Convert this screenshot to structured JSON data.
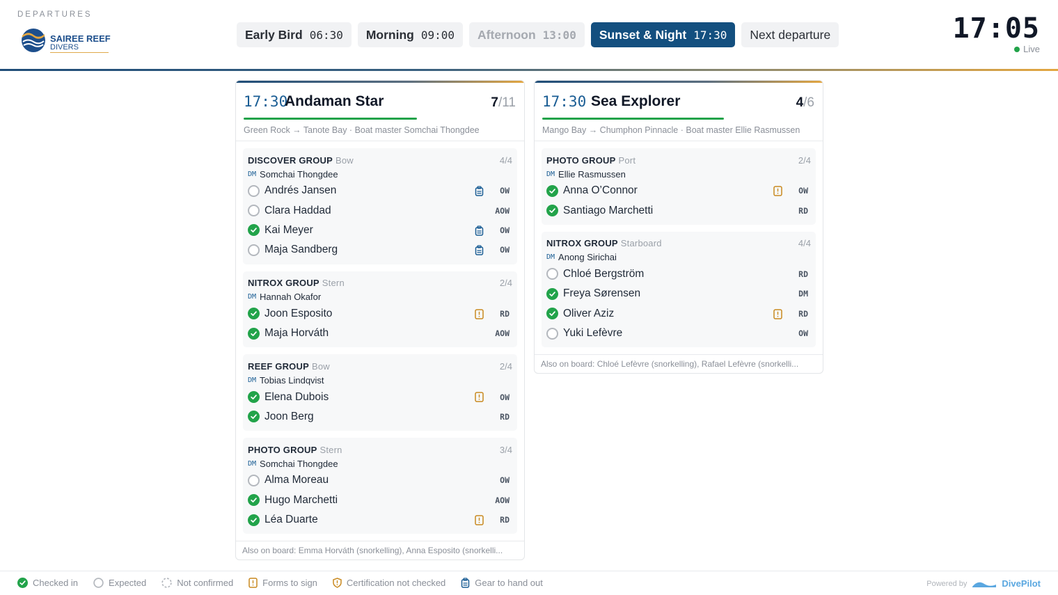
{
  "header": {
    "section_label": "DEPARTURES",
    "logo": {
      "line1": "SAIREE REEF",
      "line2": "DIVERS"
    },
    "clock": "17:05",
    "live_label": "Live"
  },
  "tabs": [
    {
      "name": "Early Bird",
      "time": "06:30",
      "state": "normal"
    },
    {
      "name": "Morning",
      "time": "09:00",
      "state": "normal"
    },
    {
      "name": "Afternoon",
      "time": "13:00",
      "state": "past"
    },
    {
      "name": "Sunset & Night",
      "time": "17:30",
      "state": "active"
    },
    {
      "name": "Next departure",
      "time": "",
      "state": "plain"
    }
  ],
  "boats": [
    {
      "time": "17:30",
      "name": "Andaman Star",
      "checked_in": "7",
      "capacity_sep": "/11",
      "progress": 0.636,
      "route": "Green Rock → Tanote Bay · Boat master Somchai Thongdee",
      "also_on_board": "Also on board: Emma Horváth (snorkelling), Anna Esposito (snorkelli...",
      "groups": [
        {
          "title": "DISCOVER GROUP",
          "position": "Bow",
          "count": "4/4",
          "dm_tag": "DM",
          "dm": "Somchai Thongdee",
          "divers": [
            {
              "name": "Andrés Jansen",
              "status": "expected",
              "flag": "gear",
              "cert": "OW"
            },
            {
              "name": "Clara Haddad",
              "status": "expected",
              "flag": "",
              "cert": "AOW"
            },
            {
              "name": "Kai Meyer",
              "status": "checked",
              "flag": "gear",
              "cert": "OW"
            },
            {
              "name": "Maja Sandberg",
              "status": "expected",
              "flag": "gear",
              "cert": "OW"
            }
          ]
        },
        {
          "title": "NITROX GROUP",
          "position": "Stern",
          "count": "2/4",
          "dm_tag": "DM",
          "dm": "Hannah Okafor",
          "divers": [
            {
              "name": "Joon Esposito",
              "status": "checked",
              "flag": "forms",
              "cert": "RD"
            },
            {
              "name": "Maja Horváth",
              "status": "checked",
              "flag": "",
              "cert": "AOW"
            }
          ]
        },
        {
          "title": "REEF GROUP",
          "position": "Bow",
          "count": "2/4",
          "dm_tag": "DM",
          "dm": "Tobias Lindqvist",
          "divers": [
            {
              "name": "Elena Dubois",
              "status": "checked",
              "flag": "forms",
              "cert": "OW"
            },
            {
              "name": "Joon Berg",
              "status": "checked",
              "flag": "",
              "cert": "RD"
            }
          ]
        },
        {
          "title": "PHOTO GROUP",
          "position": "Stern",
          "count": "3/4",
          "dm_tag": "DM",
          "dm": "Somchai Thongdee",
          "divers": [
            {
              "name": "Alma Moreau",
              "status": "expected",
              "flag": "",
              "cert": "OW"
            },
            {
              "name": "Hugo Marchetti",
              "status": "checked",
              "flag": "",
              "cert": "AOW"
            },
            {
              "name": "Léa Duarte",
              "status": "checked",
              "flag": "forms",
              "cert": "RD"
            }
          ]
        }
      ]
    },
    {
      "time": "17:30",
      "name": "Sea Explorer",
      "checked_in": "4",
      "capacity_sep": "/6",
      "progress": 0.667,
      "route": "Mango Bay → Chumphon Pinnacle · Boat master Ellie Rasmussen",
      "also_on_board": "Also on board: Chloé Lefèvre (snorkelling), Rafael Lefèvre (snorkelli...",
      "groups": [
        {
          "title": "PHOTO GROUP",
          "position": "Port",
          "count": "2/4",
          "dm_tag": "DM",
          "dm": "Ellie Rasmussen",
          "divers": [
            {
              "name": "Anna O’Connor",
              "status": "checked",
              "flag": "forms",
              "cert": "OW"
            },
            {
              "name": "Santiago Marchetti",
              "status": "checked",
              "flag": "",
              "cert": "RD"
            }
          ]
        },
        {
          "title": "NITROX GROUP",
          "position": "Starboard",
          "count": "4/4",
          "dm_tag": "DM",
          "dm": "Anong Sirichai",
          "divers": [
            {
              "name": "Chloé Bergström",
              "status": "expected",
              "flag": "",
              "cert": "RD"
            },
            {
              "name": "Freya Sørensen",
              "status": "checked",
              "flag": "",
              "cert": "DM"
            },
            {
              "name": "Oliver Aziz",
              "status": "checked",
              "flag": "forms",
              "cert": "RD"
            },
            {
              "name": "Yuki Lefèvre",
              "status": "expected",
              "flag": "",
              "cert": "OW"
            }
          ]
        }
      ]
    }
  ],
  "legend": [
    {
      "icon": "checked-icon",
      "label": "Checked in"
    },
    {
      "icon": "expected-icon",
      "label": "Expected"
    },
    {
      "icon": "not-confirmed-icon",
      "label": "Not confirmed"
    },
    {
      "icon": "forms-icon",
      "label": "Forms to sign"
    },
    {
      "icon": "certification-icon",
      "label": "Certification not checked"
    },
    {
      "icon": "gear-icon",
      "label": "Gear to hand out"
    }
  ],
  "footer": {
    "powered_by": "Powered by",
    "brand": "DivePilot"
  },
  "colors": {
    "brand_blue": "#134f7f",
    "checked_green": "#22a34a",
    "forms_amber": "#c9891f",
    "gear_blue": "#1a5d94"
  }
}
